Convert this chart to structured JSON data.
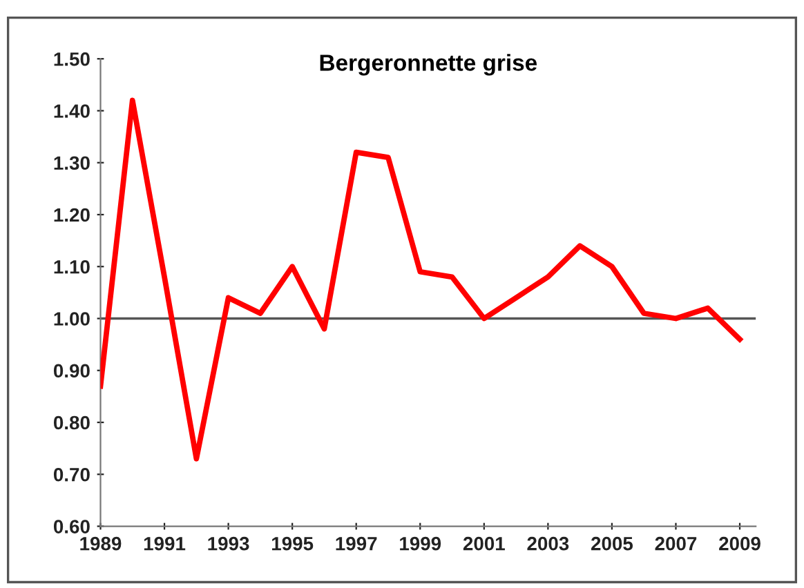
{
  "chart_data": {
    "type": "line",
    "title": "Bergeronnette grise",
    "x": [
      1989,
      1990,
      1991,
      1992,
      1993,
      1994,
      1995,
      1996,
      1997,
      1998,
      1999,
      2000,
      2001,
      2002,
      2003,
      2004,
      2005,
      2006,
      2007,
      2008,
      2009
    ],
    "series": [
      {
        "color": "#ff0000",
        "values": [
          0.87,
          1.42,
          1.08,
          0.73,
          1.04,
          1.01,
          1.1,
          0.98,
          1.32,
          1.31,
          1.09,
          1.08,
          1.0,
          1.04,
          1.08,
          1.14,
          1.1,
          1.01,
          1.0,
          1.02,
          0.96
        ]
      }
    ],
    "xlim": [
      1989,
      2009.5
    ],
    "xticks": [
      1989,
      1991,
      1993,
      1995,
      1997,
      1999,
      2001,
      2003,
      2005,
      2007,
      2009
    ],
    "ylim": [
      0.6,
      1.5
    ],
    "yticks": [
      {
        "value": 0.6,
        "label": "0.60"
      },
      {
        "value": 0.7,
        "label": "0.70"
      },
      {
        "value": 0.8,
        "label": "0.80"
      },
      {
        "value": 0.9,
        "label": "0.90"
      },
      {
        "value": 1.0,
        "label": "1.00"
      },
      {
        "value": 1.1,
        "label": "1.10"
      },
      {
        "value": 1.2,
        "label": "1.20"
      },
      {
        "value": 1.3,
        "label": "1.30"
      },
      {
        "value": 1.4,
        "label": "1.40"
      },
      {
        "value": 1.5,
        "label": "1.50"
      }
    ],
    "ref_lines": [
      {
        "axis": "y",
        "value": 1.0,
        "color": "#555555"
      }
    ],
    "grid": false,
    "legend": false,
    "marker": "none",
    "line_style": "solid"
  }
}
